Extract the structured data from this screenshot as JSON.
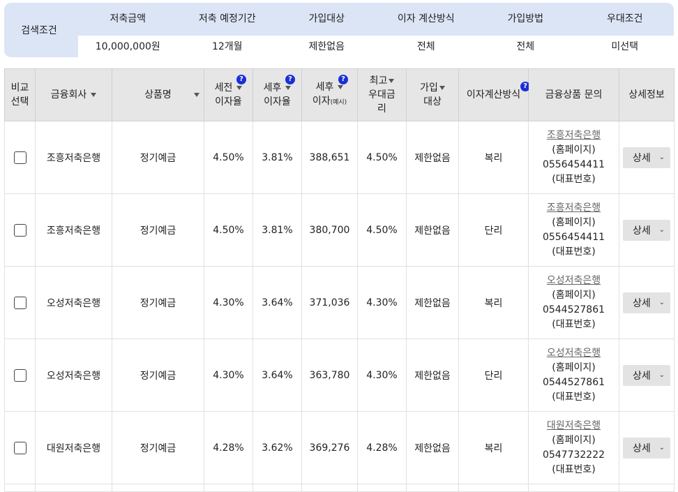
{
  "search": {
    "title": "검색조건",
    "headers": [
      "저축금액",
      "저축 예정기간",
      "가입대상",
      "이자 계산방식",
      "가입방법",
      "우대조건"
    ],
    "values": [
      "10,000,000원",
      "12개월",
      "제한없음",
      "전체",
      "전체",
      "미선택"
    ]
  },
  "table": {
    "headers": {
      "compare_1": "비교",
      "compare_2": "선택",
      "company": "금융회사",
      "product": "상품명",
      "pre_tax_1": "세전",
      "pre_tax_2": "이자율",
      "post_tax_1": "세후",
      "post_tax_2": "이자율",
      "post_tax_int_1": "세후",
      "post_tax_int_2": "이자",
      "post_tax_int_note": "(예시)",
      "max_rate_1": "최고",
      "max_rate_2": "우대금",
      "max_rate_3": "리",
      "join_1": "가입",
      "join_2": "대상",
      "calc": "이자계산방식",
      "inquiry": "금융상품 문의",
      "detail": "상세정보",
      "help_mark": "?"
    },
    "rows": [
      {
        "company": "조흥저축은행",
        "product": "정기예금",
        "pre_tax": "4.50%",
        "post_tax": "3.81%",
        "post_tax_interest": "388,651",
        "max_rate": "4.50%",
        "join_target": "제한없음",
        "calc_method": "복리",
        "inquiry_link": "조흥저축은행",
        "inquiry_home": "(홈페이지)",
        "phone": "0556454411",
        "phone_label": "(대표번호)",
        "detail": "상세"
      },
      {
        "company": "조흥저축은행",
        "product": "정기예금",
        "pre_tax": "4.50%",
        "post_tax": "3.81%",
        "post_tax_interest": "380,700",
        "max_rate": "4.50%",
        "join_target": "제한없음",
        "calc_method": "단리",
        "inquiry_link": "조흥저축은행",
        "inquiry_home": "(홈페이지)",
        "phone": "0556454411",
        "phone_label": "(대표번호)",
        "detail": "상세"
      },
      {
        "company": "오성저축은행",
        "product": "정기예금",
        "pre_tax": "4.30%",
        "post_tax": "3.64%",
        "post_tax_interest": "371,036",
        "max_rate": "4.30%",
        "join_target": "제한없음",
        "calc_method": "복리",
        "inquiry_link": "오성저축은행",
        "inquiry_home": "(홈페이지)",
        "phone": "0544527861",
        "phone_label": "(대표번호)",
        "detail": "상세"
      },
      {
        "company": "오성저축은행",
        "product": "정기예금",
        "pre_tax": "4.30%",
        "post_tax": "3.64%",
        "post_tax_interest": "363,780",
        "max_rate": "4.30%",
        "join_target": "제한없음",
        "calc_method": "단리",
        "inquiry_link": "오성저축은행",
        "inquiry_home": "(홈페이지)",
        "phone": "0544527861",
        "phone_label": "(대표번호)",
        "detail": "상세"
      },
      {
        "company": "대원저축은행",
        "product": "정기예금",
        "pre_tax": "4.28%",
        "post_tax": "3.62%",
        "post_tax_interest": "369,276",
        "max_rate": "4.28%",
        "join_target": "제한없음",
        "calc_method": "복리",
        "inquiry_link": "대원저축은행",
        "inquiry_home": "(홈페이지)",
        "phone": "0547732222",
        "phone_label": "(대표번호)",
        "detail": "상세"
      }
    ]
  },
  "colors": {
    "condition_bg": "#dbe5f6",
    "header_bg": "#e6e6e6",
    "help_icon": "#1a2fd6"
  }
}
